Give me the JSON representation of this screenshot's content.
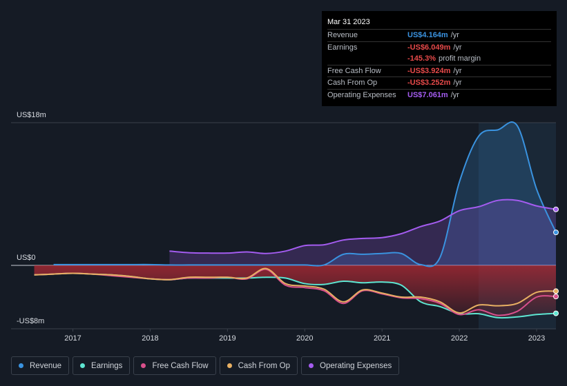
{
  "chart_data": {
    "type": "line",
    "x": [
      2016.5,
      2016.75,
      2017,
      2017.25,
      2017.5,
      2017.75,
      2018,
      2018.25,
      2018.5,
      2018.75,
      2019,
      2019.25,
      2019.5,
      2019.75,
      2020,
      2020.25,
      2020.5,
      2020.75,
      2021,
      2021.25,
      2021.5,
      2021.75,
      2022,
      2022.25,
      2022.5,
      2022.75,
      2023,
      2023.25
    ],
    "xlim": [
      2016.2,
      2023.25
    ],
    "xticks": [
      2017,
      2018,
      2019,
      2020,
      2021,
      2022,
      2023
    ],
    "ylim": [
      -8,
      18
    ],
    "yticks": [
      {
        "value": -8,
        "label": "-US$8m"
      },
      {
        "value": 0,
        "label": "US$0"
      },
      {
        "value": 18,
        "label": "US$18m"
      }
    ],
    "grid": true,
    "series": [
      {
        "name": "Revenue",
        "color": "#3a93e0",
        "fill": true,
        "values": [
          null,
          0.1,
          0.1,
          0.1,
          0.1,
          0.1,
          0.1,
          0.05,
          0.05,
          0.05,
          0.05,
          0.05,
          0.05,
          0.05,
          0.05,
          0.05,
          1.4,
          1.4,
          1.5,
          1.5,
          0.1,
          1.0,
          10.5,
          16.3,
          17.1,
          17.6,
          9.6,
          4.164
        ]
      },
      {
        "name": "Earnings",
        "color": "#5ee6d2",
        "fill": true,
        "values": [
          -1.2,
          -1.1,
          -1.0,
          -1.1,
          -1.2,
          -1.4,
          -1.7,
          -1.8,
          -1.6,
          -1.6,
          -1.6,
          -1.6,
          -1.5,
          -1.6,
          -2.3,
          -2.4,
          -2.0,
          -2.2,
          -2.1,
          -2.5,
          -4.6,
          -5.2,
          -6.1,
          -6.1,
          -6.6,
          -6.5,
          -6.2,
          -6.049
        ]
      },
      {
        "name": "Free Cash Flow",
        "color": "#d9508c",
        "fill": false,
        "values": [
          -1.2,
          -1.1,
          -1.0,
          -1.1,
          -1.3,
          -1.5,
          -1.7,
          -1.8,
          -1.6,
          -1.6,
          -1.5,
          -1.7,
          -0.5,
          -2.5,
          -2.8,
          -3.2,
          -4.8,
          -3.2,
          -3.6,
          -4.1,
          -4.2,
          -4.8,
          -6.2,
          -5.6,
          -6.3,
          -5.8,
          -4.0,
          -3.924
        ]
      },
      {
        "name": "Cash From Op",
        "color": "#e8b063",
        "fill": false,
        "values": [
          -1.2,
          -1.1,
          -1.0,
          -1.1,
          -1.2,
          -1.4,
          -1.7,
          -1.8,
          -1.5,
          -1.5,
          -1.5,
          -1.6,
          -0.4,
          -2.3,
          -2.6,
          -3.0,
          -4.6,
          -3.1,
          -3.5,
          -4.0,
          -4.0,
          -4.6,
          -6.0,
          -5.0,
          -5.1,
          -4.8,
          -3.4,
          -3.252
        ]
      },
      {
        "name": "Operating Expenses",
        "color": "#a45cf0",
        "fill": true,
        "values": [
          null,
          null,
          null,
          null,
          null,
          null,
          null,
          1.8,
          1.6,
          1.55,
          1.55,
          1.7,
          1.5,
          1.8,
          2.5,
          2.6,
          3.2,
          3.4,
          3.5,
          4.0,
          4.9,
          5.6,
          6.9,
          7.4,
          8.2,
          8.2,
          7.5,
          7.061
        ]
      }
    ],
    "tooltip": {
      "date": "Mar 31 2023",
      "rows": [
        {
          "label": "Revenue",
          "value": "US$4.164m",
          "unit": "/yr",
          "color": "#3a93e0"
        },
        {
          "label": "Earnings",
          "value": "-US$6.049m",
          "unit": "/yr",
          "color": "#e84a4a"
        },
        {
          "value": "-145.3%",
          "unit": "profit margin",
          "color": "#e84a4a"
        },
        {
          "label": "Free Cash Flow",
          "value": "-US$3.924m",
          "unit": "/yr",
          "color": "#e84a4a"
        },
        {
          "label": "Cash From Op",
          "value": "-US$3.252m",
          "unit": "/yr",
          "color": "#e84a4a"
        },
        {
          "label": "Operating Expenses",
          "value": "US$7.061m",
          "unit": "/yr",
          "color": "#a45cf0"
        }
      ]
    }
  }
}
